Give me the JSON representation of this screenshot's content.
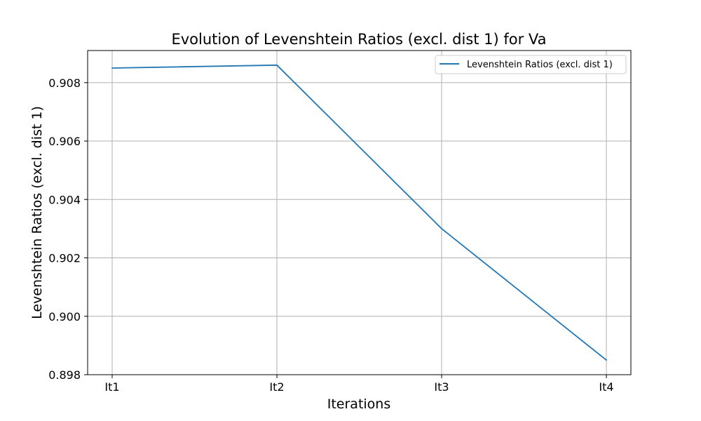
{
  "chart_data": {
    "type": "line",
    "title": "Evolution of Levenshtein Ratios (excl. dist 1) for Va",
    "xlabel": "Iterations",
    "ylabel": "Levenshtein Ratios (excl. dist 1)",
    "categories": [
      "It1",
      "It2",
      "It3",
      "It4"
    ],
    "series": [
      {
        "name": "Levenshtein Ratios (excl. dist 1)",
        "values": [
          0.9085,
          0.9086,
          0.903,
          0.8985
        ],
        "color": "#1f77b4"
      }
    ],
    "ylim": [
      0.898,
      0.9091
    ],
    "yticks": [
      "0.898",
      "0.900",
      "0.902",
      "0.904",
      "0.906",
      "0.908"
    ],
    "grid": true,
    "legend_position": "top-right"
  }
}
